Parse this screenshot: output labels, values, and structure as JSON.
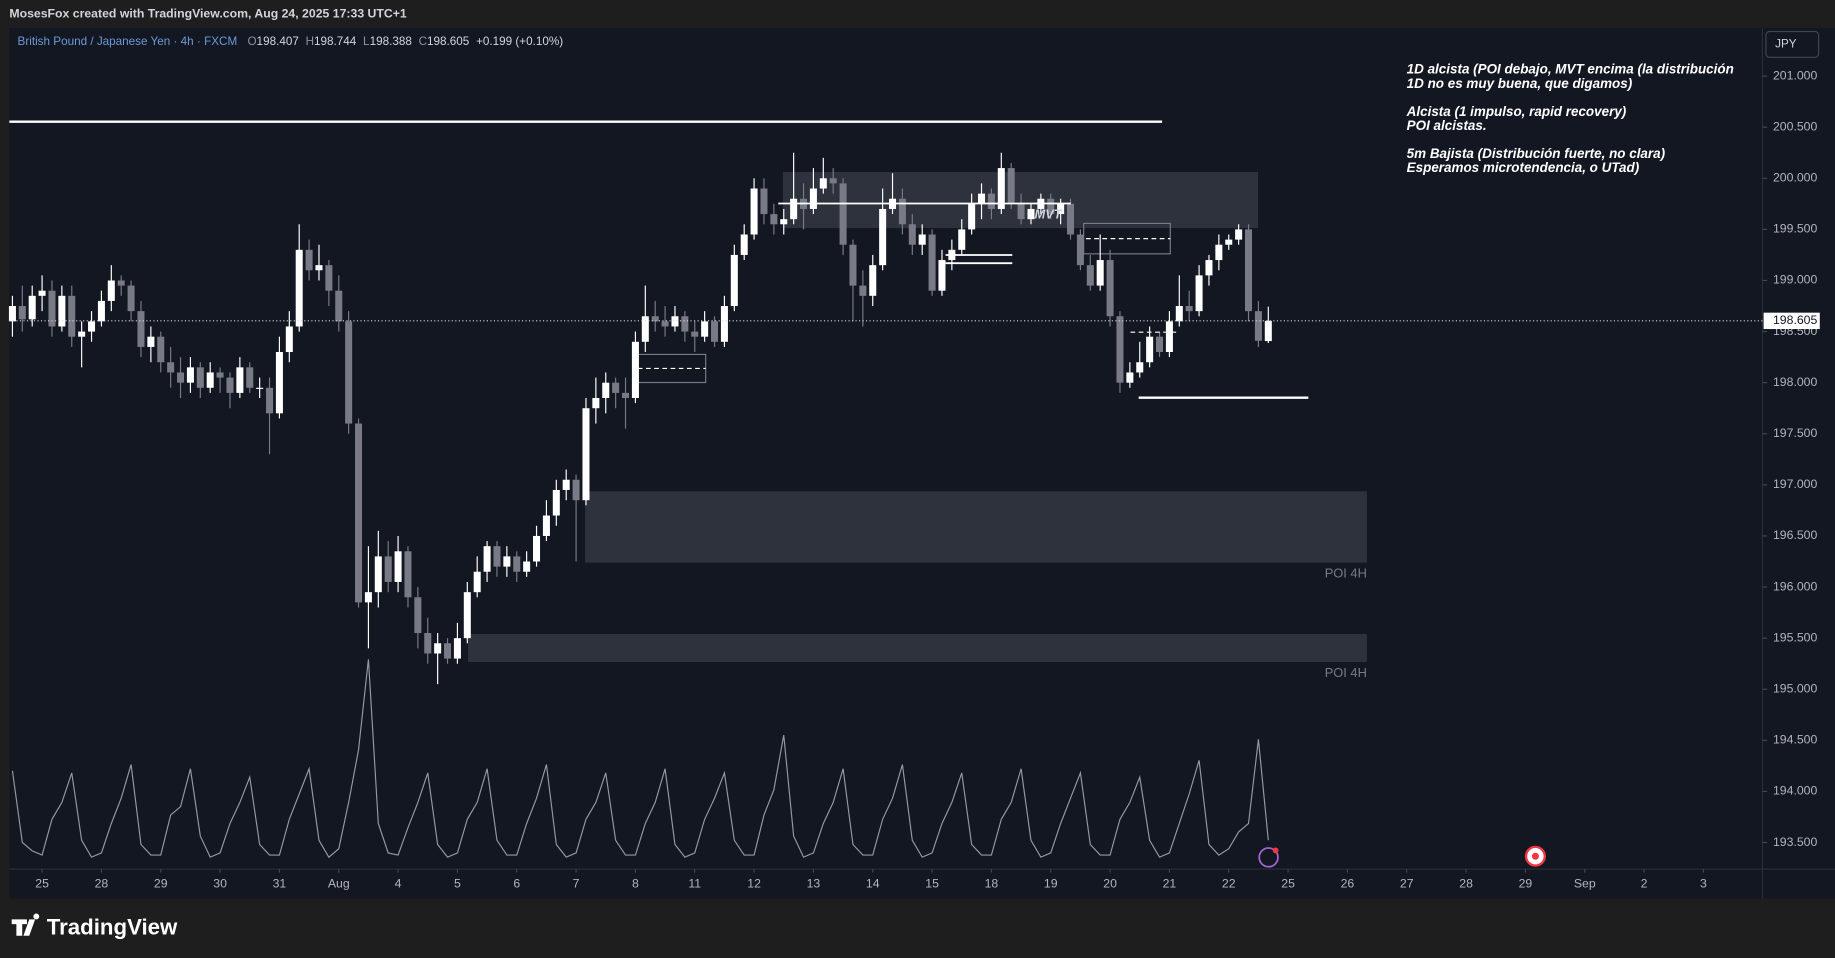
{
  "header": {
    "attribution": "MosesFox created with TradingView.com, Aug 24, 2025 17:33 UTC+1",
    "symbol": "British Pound / Japanese Yen · 4h · FXCM",
    "ohlc_letters": [
      "O",
      "H",
      "L",
      "C"
    ],
    "change": "+0.199 (+0.10%)",
    "currency": "JPY"
  },
  "footer": {
    "logo": "TradingView"
  },
  "chart_data": {
    "type": "candlestick",
    "up_color": "#ffffff",
    "down_color": "#787b86",
    "x": [
      -3,
      -2,
      -1,
      0,
      1,
      2,
      3,
      4,
      5,
      6,
      7,
      8,
      9,
      10,
      11,
      12,
      13,
      14,
      15,
      16,
      17,
      18,
      19,
      20,
      21,
      22,
      23,
      24,
      25,
      26,
      27,
      28,
      29,
      30,
      31,
      32,
      33,
      34,
      35,
      36,
      37,
      38,
      39,
      40,
      41,
      42,
      43,
      44,
      45,
      46,
      47,
      48,
      49,
      50,
      51,
      52,
      53,
      54,
      55,
      56,
      57,
      58,
      59,
      60,
      61,
      62,
      63,
      64,
      65,
      66,
      67,
      68,
      69,
      70,
      71,
      72,
      73,
      74,
      75,
      76,
      77,
      78,
      79,
      80,
      81,
      82,
      83,
      84,
      85,
      86,
      87,
      88,
      89,
      90,
      91,
      92,
      93,
      94,
      95,
      96,
      97,
      98,
      99,
      100,
      101,
      102,
      103,
      104,
      105,
      106,
      107,
      108,
      109,
      110,
      111,
      112,
      113,
      114,
      115,
      116,
      117,
      118,
      119,
      120,
      121,
      122,
      123,
      124
    ],
    "candles": [
      [
        198.6,
        198.85,
        198.45,
        198.75
      ],
      [
        198.75,
        198.95,
        198.5,
        198.62
      ],
      [
        198.62,
        198.95,
        198.55,
        198.85
      ],
      [
        198.85,
        199.05,
        198.7,
        198.9
      ],
      [
        198.9,
        199.0,
        198.45,
        198.55
      ],
      [
        198.55,
        198.95,
        198.5,
        198.85
      ],
      [
        198.85,
        198.95,
        198.35,
        198.45
      ],
      [
        198.45,
        198.6,
        198.15,
        198.5
      ],
      [
        198.5,
        198.7,
        198.4,
        198.6
      ],
      [
        198.6,
        198.9,
        198.55,
        198.8
      ],
      [
        198.8,
        199.15,
        198.7,
        199.0
      ],
      [
        199.0,
        199.05,
        198.85,
        198.95
      ],
      [
        198.95,
        199.0,
        198.6,
        198.7
      ],
      [
        198.7,
        198.8,
        198.25,
        198.35
      ],
      [
        198.35,
        198.55,
        198.2,
        198.45
      ],
      [
        198.45,
        198.5,
        198.1,
        198.2
      ],
      [
        198.2,
        198.35,
        197.95,
        198.1
      ],
      [
        198.1,
        198.25,
        197.85,
        198.0
      ],
      [
        198.0,
        198.25,
        197.9,
        198.15
      ],
      [
        198.15,
        198.2,
        197.85,
        197.95
      ],
      [
        197.95,
        198.2,
        197.9,
        198.1
      ],
      [
        198.1,
        198.15,
        197.9,
        198.05
      ],
      [
        198.05,
        198.1,
        197.75,
        197.9
      ],
      [
        197.9,
        198.25,
        197.85,
        198.15
      ],
      [
        198.15,
        198.2,
        197.9,
        197.95
      ],
      [
        197.95,
        198.05,
        197.85,
        197.95
      ],
      [
        197.95,
        198.05,
        197.3,
        197.7
      ],
      [
        197.7,
        198.45,
        197.65,
        198.3
      ],
      [
        198.3,
        198.7,
        198.2,
        198.55
      ],
      [
        198.55,
        199.55,
        198.5,
        199.3
      ],
      [
        199.3,
        199.4,
        199.0,
        199.1
      ],
      [
        199.1,
        199.35,
        199.0,
        199.15
      ],
      [
        199.15,
        199.2,
        198.75,
        198.9
      ],
      [
        198.9,
        199.05,
        198.5,
        198.6
      ],
      [
        198.6,
        198.7,
        197.5,
        197.6
      ],
      [
        197.6,
        197.65,
        195.8,
        195.85
      ],
      [
        195.85,
        196.4,
        195.4,
        195.95
      ],
      [
        195.95,
        196.55,
        195.8,
        196.3
      ],
      [
        196.3,
        196.45,
        195.95,
        196.05
      ],
      [
        196.05,
        196.5,
        195.95,
        196.35
      ],
      [
        196.35,
        196.4,
        195.8,
        195.9
      ],
      [
        195.9,
        196.0,
        195.4,
        195.55
      ],
      [
        195.55,
        195.7,
        195.25,
        195.35
      ],
      [
        195.35,
        195.55,
        195.05,
        195.45
      ],
      [
        195.45,
        195.5,
        195.25,
        195.3
      ],
      [
        195.3,
        195.65,
        195.25,
        195.5
      ],
      [
        195.5,
        196.05,
        195.45,
        195.95
      ],
      [
        195.95,
        196.3,
        195.9,
        196.15
      ],
      [
        196.15,
        196.45,
        196.05,
        196.4
      ],
      [
        196.4,
        196.45,
        196.1,
        196.2
      ],
      [
        196.2,
        196.4,
        196.1,
        196.3
      ],
      [
        196.3,
        196.35,
        196.05,
        196.15
      ],
      [
        196.15,
        196.35,
        196.1,
        196.25
      ],
      [
        196.25,
        196.6,
        196.2,
        196.5
      ],
      [
        196.5,
        196.85,
        196.45,
        196.7
      ],
      [
        196.7,
        197.05,
        196.6,
        196.95
      ],
      [
        196.95,
        197.15,
        196.85,
        197.05
      ],
      [
        197.05,
        197.1,
        196.25,
        196.85
      ],
      [
        196.85,
        197.85,
        196.8,
        197.75
      ],
      [
        197.75,
        198.05,
        197.6,
        197.85
      ],
      [
        197.85,
        198.1,
        197.7,
        198.0
      ],
      [
        198.0,
        198.05,
        197.75,
        197.9
      ],
      [
        197.9,
        198.05,
        197.55,
        197.85
      ],
      [
        197.85,
        198.5,
        197.8,
        198.4
      ],
      [
        198.4,
        198.95,
        198.3,
        198.65
      ],
      [
        198.65,
        198.8,
        198.5,
        198.6
      ],
      [
        198.6,
        198.75,
        198.45,
        198.55
      ],
      [
        198.55,
        198.75,
        198.5,
        198.65
      ],
      [
        198.65,
        198.7,
        198.4,
        198.5
      ],
      [
        198.5,
        198.6,
        198.3,
        198.45
      ],
      [
        198.45,
        198.7,
        198.4,
        198.6
      ],
      [
        198.6,
        198.65,
        198.35,
        198.4
      ],
      [
        198.4,
        198.85,
        198.35,
        198.75
      ],
      [
        198.75,
        199.35,
        198.7,
        199.25
      ],
      [
        199.25,
        199.55,
        199.2,
        199.45
      ],
      [
        199.45,
        200.0,
        199.4,
        199.9
      ],
      [
        199.9,
        200.0,
        199.55,
        199.65
      ],
      [
        199.65,
        199.75,
        199.45,
        199.55
      ],
      [
        199.55,
        199.7,
        199.45,
        199.6
      ],
      [
        199.6,
        200.25,
        199.55,
        199.8
      ],
      [
        199.8,
        199.95,
        199.5,
        199.7
      ],
      [
        199.7,
        200.1,
        199.65,
        199.9
      ],
      [
        199.9,
        200.2,
        199.85,
        200.0
      ],
      [
        200.0,
        200.1,
        199.85,
        199.95
      ],
      [
        199.95,
        200.0,
        199.25,
        199.35
      ],
      [
        199.35,
        199.4,
        198.6,
        198.95
      ],
      [
        198.95,
        199.1,
        198.55,
        198.85
      ],
      [
        198.85,
        199.25,
        198.75,
        199.15
      ],
      [
        199.15,
        199.9,
        199.1,
        199.7
      ],
      [
        199.7,
        200.05,
        199.65,
        199.8
      ],
      [
        199.8,
        199.9,
        199.45,
        199.55
      ],
      [
        199.55,
        199.65,
        199.25,
        199.35
      ],
      [
        199.35,
        199.55,
        199.25,
        199.45
      ],
      [
        199.45,
        199.5,
        198.85,
        198.9
      ],
      [
        198.9,
        199.3,
        198.85,
        199.2
      ],
      [
        199.2,
        199.4,
        199.1,
        199.3
      ],
      [
        199.3,
        199.6,
        199.25,
        199.5
      ],
      [
        199.5,
        199.85,
        199.45,
        199.75
      ],
      [
        199.75,
        199.95,
        199.6,
        199.85
      ],
      [
        199.85,
        199.9,
        199.6,
        199.7
      ],
      [
        199.7,
        200.25,
        199.65,
        200.1
      ],
      [
        200.1,
        200.15,
        199.7,
        199.75
      ],
      [
        199.75,
        199.85,
        199.55,
        199.6
      ],
      [
        199.6,
        199.75,
        199.55,
        199.7
      ],
      [
        199.7,
        199.85,
        199.65,
        199.8
      ],
      [
        199.8,
        199.85,
        199.6,
        199.65
      ],
      [
        199.65,
        199.8,
        199.55,
        199.75
      ],
      [
        199.75,
        199.8,
        199.4,
        199.45
      ],
      [
        199.45,
        199.5,
        199.1,
        199.15
      ],
      [
        199.15,
        199.25,
        198.9,
        198.95
      ],
      [
        198.95,
        199.45,
        198.9,
        199.2
      ],
      [
        199.2,
        199.3,
        198.55,
        198.65
      ],
      [
        198.65,
        198.7,
        197.9,
        198.0
      ],
      [
        198.0,
        198.2,
        197.95,
        198.1
      ],
      [
        198.1,
        198.4,
        198.05,
        198.2
      ],
      [
        198.2,
        198.55,
        198.15,
        198.45
      ],
      [
        198.45,
        198.5,
        198.25,
        198.3
      ],
      [
        198.3,
        198.7,
        198.25,
        198.6
      ],
      [
        198.6,
        199.05,
        198.55,
        198.75
      ],
      [
        198.75,
        198.9,
        198.6,
        198.7
      ],
      [
        198.7,
        199.15,
        198.65,
        199.05
      ],
      [
        199.05,
        199.25,
        198.95,
        199.2
      ],
      [
        199.2,
        199.45,
        199.1,
        199.35
      ],
      [
        199.35,
        199.45,
        199.3,
        199.4
      ],
      [
        199.4,
        199.55,
        199.35,
        199.5
      ],
      [
        199.5,
        199.55,
        198.6,
        198.7
      ],
      [
        198.7,
        198.8,
        198.35,
        198.41
      ],
      [
        198.407,
        198.744,
        198.388,
        198.605
      ]
    ],
    "ylim": [
      193.24,
      201.47
    ],
    "yticks": [
      {
        "value": 193.5,
        "label": "193.500"
      },
      {
        "value": 194,
        "label": "194.000"
      },
      {
        "value": 194.5,
        "label": "194.500"
      },
      {
        "value": 195,
        "label": "195.000"
      },
      {
        "value": 195.5,
        "label": "195.500"
      },
      {
        "value": 196,
        "label": "196.000"
      },
      {
        "value": 196.5,
        "label": "196.500"
      },
      {
        "value": 197,
        "label": "197.000"
      },
      {
        "value": 197.5,
        "label": "197.500"
      },
      {
        "value": 198,
        "label": "198.000"
      },
      {
        "value": 198.5,
        "label": "198.500"
      },
      {
        "value": 199,
        "label": "199.000"
      },
      {
        "value": 199.5,
        "label": "199.500"
      },
      {
        "value": 200,
        "label": "200.000"
      },
      {
        "value": 200.5,
        "label": "200.500"
      },
      {
        "value": 201,
        "label": "201.000"
      }
    ],
    "xlim": [
      -3.31,
      173.97
    ],
    "xticks": [
      {
        "value": 0,
        "label": "25"
      },
      {
        "value": 6,
        "label": "28"
      },
      {
        "value": 12,
        "label": "29"
      },
      {
        "value": 18,
        "label": "30"
      },
      {
        "value": 24,
        "label": "31"
      },
      {
        "value": 30,
        "label": "Aug"
      },
      {
        "value": 36,
        "label": "4"
      },
      {
        "value": 42,
        "label": "5"
      },
      {
        "value": 48,
        "label": "6"
      },
      {
        "value": 54,
        "label": "7"
      },
      {
        "value": 60,
        "label": "8"
      },
      {
        "value": 66,
        "label": "11"
      },
      {
        "value": 72,
        "label": "12"
      },
      {
        "value": 78,
        "label": "13"
      },
      {
        "value": 84,
        "label": "14"
      },
      {
        "value": 90,
        "label": "15"
      },
      {
        "value": 96,
        "label": "18"
      },
      {
        "value": 102,
        "label": "19"
      },
      {
        "value": 108,
        "label": "20"
      },
      {
        "value": 114,
        "label": "21"
      },
      {
        "value": 120,
        "label": "22"
      },
      {
        "value": 126,
        "label": "25"
      },
      {
        "value": 132,
        "label": "26"
      },
      {
        "value": 138,
        "label": "27"
      },
      {
        "value": 144,
        "label": "28"
      },
      {
        "value": 150,
        "label": "29"
      },
      {
        "value": 156,
        "label": "Sep"
      },
      {
        "value": 162,
        "label": "2"
      },
      {
        "value": 168,
        "label": "3"
      }
    ],
    "indicator": {
      "color": "#9598a1",
      "lim": [
        0,
        100
      ],
      "values": [
        45,
        11,
        7,
        5,
        22,
        30,
        44,
        12,
        4,
        6,
        20,
        32,
        48,
        10,
        5,
        5,
        24,
        28,
        46,
        14,
        4,
        6,
        20,
        30,
        42,
        10,
        5,
        5,
        22,
        34,
        46,
        12,
        4,
        8,
        30,
        55,
        98,
        20,
        6,
        5,
        18,
        30,
        44,
        10,
        4,
        6,
        22,
        30,
        46,
        12,
        5,
        5,
        20,
        32,
        48,
        10,
        4,
        6,
        22,
        30,
        44,
        12,
        5,
        5,
        20,
        30,
        46,
        10,
        4,
        6,
        22,
        32,
        44,
        12,
        5,
        5,
        24,
        36,
        62,
        14,
        4,
        6,
        20,
        30,
        46,
        10,
        5,
        5,
        22,
        32,
        48,
        12,
        4,
        6,
        20,
        30,
        44,
        10,
        5,
        5,
        22,
        30,
        46,
        12,
        4,
        6,
        20,
        32,
        44,
        10,
        5,
        5,
        22,
        30,
        42,
        12,
        4,
        6,
        20,
        34,
        50,
        10,
        5,
        8,
        16,
        20,
        60,
        12
      ]
    },
    "annotations": [
      "1D alcista (POI debajo, MVT encima (la distribución",
      "1D no es muy buena, que digamos)",
      "Alcista (1 impulso, rapid recovery)",
      "POI alcistas.",
      "5m Bajista (Distribución fuerte, no clara)",
      "Esperamos microtendencia, o UTad)"
    ],
    "drawing_labels": [
      "POI 4H",
      "POI 4H",
      "MVT"
    ]
  }
}
